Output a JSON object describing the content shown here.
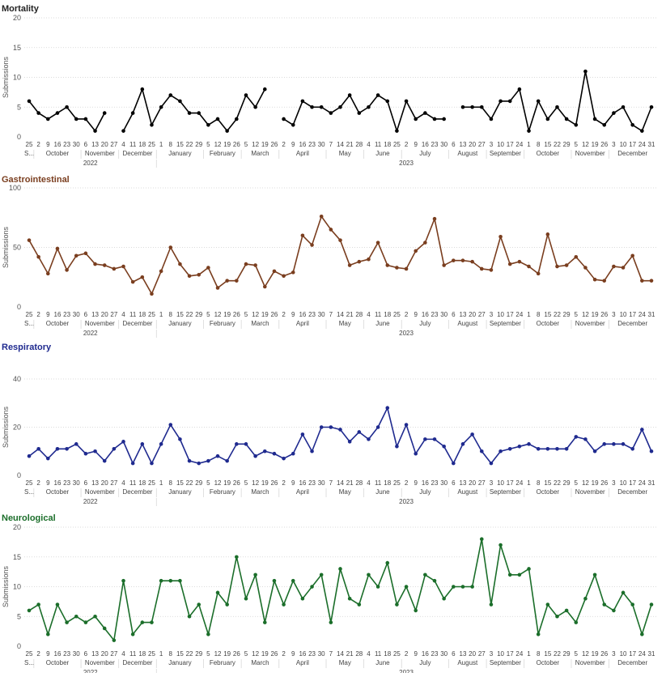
{
  "x_axis": {
    "dates": [
      "2022-09-25",
      "2022-10-02",
      "2022-10-09",
      "2022-10-16",
      "2022-10-23",
      "2022-10-30",
      "2022-11-06",
      "2022-11-13",
      "2022-11-20",
      "2022-11-27",
      "2022-12-04",
      "2022-12-11",
      "2022-12-18",
      "2022-12-25",
      "2023-01-01",
      "2023-01-08",
      "2023-01-15",
      "2023-01-22",
      "2023-01-29",
      "2023-02-05",
      "2023-02-12",
      "2023-02-19",
      "2023-02-26",
      "2023-03-05",
      "2023-03-12",
      "2023-03-19",
      "2023-03-26",
      "2023-04-02",
      "2023-04-09",
      "2023-04-16",
      "2023-04-23",
      "2023-04-30",
      "2023-05-07",
      "2023-05-14",
      "2023-05-21",
      "2023-05-28",
      "2023-06-04",
      "2023-06-11",
      "2023-06-18",
      "2023-06-25",
      "2023-07-02",
      "2023-07-09",
      "2023-07-16",
      "2023-07-23",
      "2023-07-30",
      "2023-08-06",
      "2023-08-13",
      "2023-08-20",
      "2023-08-27",
      "2023-09-03",
      "2023-09-10",
      "2023-09-17",
      "2023-09-24",
      "2023-10-01",
      "2023-10-08",
      "2023-10-15",
      "2023-10-22",
      "2023-10-29",
      "2023-11-05",
      "2023-11-12",
      "2023-11-19",
      "2023-11-26",
      "2023-12-03",
      "2023-12-10",
      "2023-12-17",
      "2023-12-24",
      "2023-12-31"
    ],
    "day_labels": [
      "25",
      "2",
      "9",
      "16",
      "23",
      "30",
      "6",
      "13",
      "20",
      "27",
      "4",
      "11",
      "18",
      "25",
      "1",
      "8",
      "15",
      "22",
      "29",
      "5",
      "12",
      "19",
      "26",
      "5",
      "12",
      "19",
      "26",
      "2",
      "9",
      "16",
      "23",
      "30",
      "7",
      "14",
      "21",
      "28",
      "4",
      "11",
      "18",
      "25",
      "2",
      "9",
      "16",
      "23",
      "30",
      "6",
      "13",
      "20",
      "27",
      "3",
      "10",
      "17",
      "24",
      "1",
      "8",
      "15",
      "22",
      "29",
      "5",
      "12",
      "19",
      "26",
      "3",
      "10",
      "17",
      "24",
      "31"
    ],
    "months": [
      {
        "label": "S...",
        "start": 0,
        "end": 0
      },
      {
        "label": "October",
        "start": 1,
        "end": 5
      },
      {
        "label": "November",
        "start": 6,
        "end": 9
      },
      {
        "label": "December",
        "start": 10,
        "end": 13
      },
      {
        "label": "January",
        "start": 14,
        "end": 18
      },
      {
        "label": "February",
        "start": 19,
        "end": 22
      },
      {
        "label": "March",
        "start": 23,
        "end": 26
      },
      {
        "label": "April",
        "start": 27,
        "end": 31
      },
      {
        "label": "May",
        "start": 32,
        "end": 35
      },
      {
        "label": "June",
        "start": 36,
        "end": 39
      },
      {
        "label": "July",
        "start": 40,
        "end": 44
      },
      {
        "label": "August",
        "start": 45,
        "end": 48
      },
      {
        "label": "September",
        "start": 49,
        "end": 52
      },
      {
        "label": "October",
        "start": 53,
        "end": 57
      },
      {
        "label": "November",
        "start": 58,
        "end": 61
      },
      {
        "label": "December",
        "start": 62,
        "end": 66
      }
    ],
    "years": [
      {
        "label": "2022",
        "start": 0,
        "end": 13
      },
      {
        "label": "2023",
        "start": 14,
        "end": 66
      }
    ]
  },
  "chart_data": [
    {
      "type": "line",
      "title": "Mortality",
      "ylabel": "Submissions",
      "ylim": [
        0,
        20
      ],
      "yticks": [
        0,
        5,
        10,
        15,
        20
      ],
      "color": "#000000",
      "series": [
        {
          "values": [
            6,
            4,
            3,
            4,
            5,
            3,
            3,
            1,
            4,
            null,
            1,
            4,
            8,
            2,
            5,
            7,
            6,
            4,
            4,
            2,
            3,
            1,
            3,
            7,
            5,
            8,
            null,
            3,
            2,
            6,
            5,
            5,
            4,
            5,
            7,
            4,
            5,
            7,
            6,
            1,
            6,
            3,
            4,
            3,
            3,
            null,
            5,
            5,
            5,
            3,
            6,
            6,
            8,
            1,
            6,
            3,
            5,
            3,
            2,
            11,
            3,
            2,
            4,
            5,
            2,
            1,
            5
          ]
        }
      ]
    },
    {
      "type": "line",
      "title": "Gastrointestinal",
      "ylabel": "Submissions",
      "ylim": [
        0,
        100
      ],
      "yticks": [
        0,
        50,
        100
      ],
      "color": "#7a3e1f",
      "series": [
        {
          "values": [
            56,
            42,
            28,
            49,
            31,
            43,
            45,
            36,
            35,
            32,
            34,
            21,
            25,
            11,
            30,
            50,
            36,
            26,
            27,
            33,
            16,
            22,
            22,
            36,
            35,
            17,
            30,
            26,
            29,
            60,
            52,
            76,
            65,
            56,
            35,
            38,
            40,
            54,
            35,
            33,
            32,
            47,
            54,
            74,
            35,
            39,
            39,
            38,
            32,
            31,
            59,
            36,
            38,
            34,
            28,
            61,
            34,
            35,
            42,
            33,
            23,
            22,
            34,
            33,
            43,
            22,
            22
          ]
        }
      ]
    },
    {
      "type": "line",
      "title": "Respiratory",
      "ylabel": "Submissions",
      "ylim": [
        0,
        40
      ],
      "yticks": [
        0,
        20,
        40
      ],
      "color": "#1f2a8f",
      "series": [
        {
          "values": [
            8,
            11,
            7,
            11,
            11,
            13,
            9,
            10,
            6,
            11,
            14,
            5,
            13,
            5,
            13,
            21,
            15,
            6,
            5,
            6,
            8,
            6,
            13,
            13,
            8,
            10,
            9,
            7,
            9,
            17,
            10,
            20,
            20,
            19,
            14,
            18,
            15,
            20,
            28,
            12,
            21,
            9,
            15,
            15,
            12,
            5,
            13,
            17,
            10,
            5,
            10,
            11,
            12,
            13,
            11,
            11,
            11,
            11,
            16,
            15,
            10,
            13,
            13,
            13,
            11,
            19,
            10
          ]
        }
      ]
    },
    {
      "type": "line",
      "title": "Neurological",
      "ylabel": "Submissions",
      "ylim": [
        0,
        20
      ],
      "yticks": [
        0,
        5,
        10,
        15,
        20
      ],
      "color": "#1b6e2a",
      "series": [
        {
          "values": [
            6,
            7,
            2,
            7,
            4,
            5,
            4,
            5,
            3,
            1,
            11,
            2,
            4,
            4,
            11,
            11,
            11,
            5,
            7,
            2,
            9,
            7,
            15,
            8,
            12,
            4,
            11,
            7,
            11,
            8,
            10,
            12,
            4,
            13,
            8,
            7,
            12,
            10,
            14,
            7,
            10,
            6,
            12,
            11,
            8,
            10,
            10,
            10,
            18,
            7,
            17,
            12,
            12,
            13,
            2,
            7,
            5,
            6,
            4,
            8,
            12,
            7,
            6,
            9,
            7,
            2,
            7
          ]
        }
      ]
    }
  ]
}
